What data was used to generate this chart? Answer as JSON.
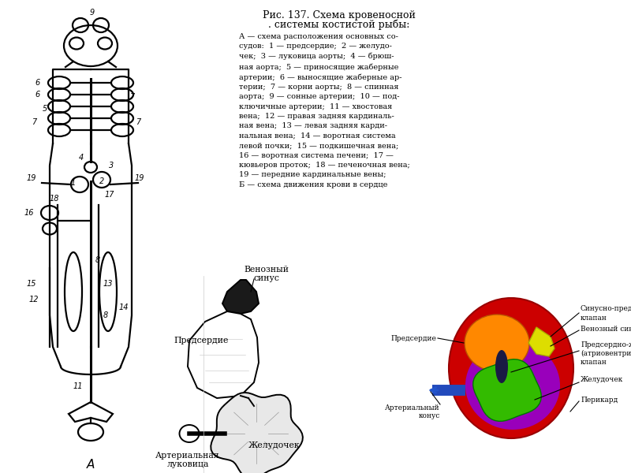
{
  "bg_color": "#ffffff",
  "title_line1": "Рис. 137. Схема кровеносной",
  "title_line2": ". системы костистой рыбы:",
  "description_text": "А — схема расположения основных со-\nсудов:  1 — предсердие;  2 — желудо-\nчек;  3 — луковица аорты;  4 — брюш-\nная аорта;  5 — приносящие жаберные\nартерии;  6 — выносящие жаберные ар-\nтерии;  7 — корни аорты;  8 — спинная\nаорта;  9 — сонные артерии;  10 — под-\nключичные артерии;  11 — хвостовая\nвена;  12 — правая задняя кардиналь-\nная вена;  13 — левая задняя карди-\nнальная вена;  14 — воротная система\nлевой почки;  15 — подкишечная вена;\n16 — воротная система печени;  17 —\nкювьеров проток;  18 — печеночная вена;\n19 — передние кардинальные вены;\nБ — схема движения крови в сердце",
  "pericard_color": "#cc0000",
  "atrium_color": "#ff8800",
  "ventricle_color": "#33bb00",
  "purple_color": "#9900bb",
  "yellow_color": "#dddd00",
  "blue_color": "#2255cc",
  "dark_blue": "#223399"
}
